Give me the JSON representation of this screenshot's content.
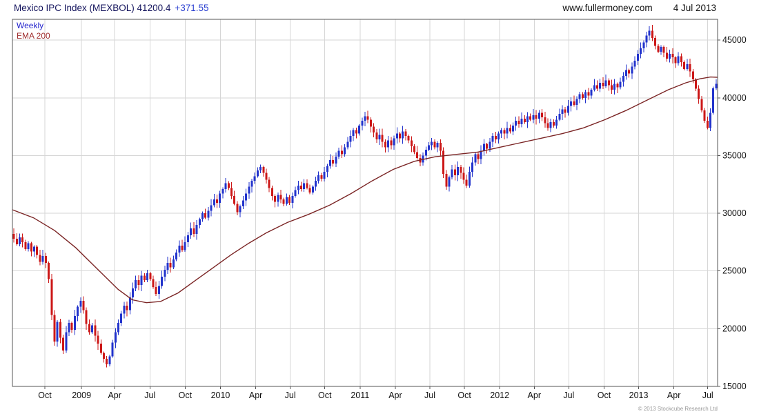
{
  "header": {
    "title": "Mexico IPC Index (MEXBOL) 41200.4",
    "change": "+371.55",
    "website": "www.fullermoney.com",
    "date": "4 Jul 2013"
  },
  "legend": {
    "weekly": "Weekly",
    "ema": "EMA 200"
  },
  "footer": {
    "copyright": "© 2013 Stockcube Research Ltd"
  },
  "colors": {
    "up": "#2233cc",
    "down": "#cc1717",
    "ema": "#7b2525",
    "grid": "#d6d6d6",
    "border": "#555555",
    "axis_text": "#111111",
    "title_text": "#13135c",
    "change_text": "#2a3fd0"
  },
  "chart_data": {
    "type": "candlestick",
    "title": "Mexico IPC Index (MEXBOL)",
    "timeframe": "Weekly",
    "overlay": "EMA 200",
    "last_price": 41200.4,
    "change": 371.55,
    "y_axis": {
      "min": 15000,
      "max": 46800,
      "ticks": [
        15000,
        20000,
        25000,
        30000,
        35000,
        40000,
        45000
      ]
    },
    "x_labels": [
      {
        "label": "Oct",
        "pos": 0.046
      },
      {
        "label": "2009",
        "pos": 0.098
      },
      {
        "label": "Apr",
        "pos": 0.145
      },
      {
        "label": "Jul",
        "pos": 0.195
      },
      {
        "label": "Oct",
        "pos": 0.245
      },
      {
        "label": "2010",
        "pos": 0.295
      },
      {
        "label": "Apr",
        "pos": 0.345
      },
      {
        "label": "Jul",
        "pos": 0.394
      },
      {
        "label": "Oct",
        "pos": 0.443
      },
      {
        "label": "2011",
        "pos": 0.493
      },
      {
        "label": "Apr",
        "pos": 0.543
      },
      {
        "label": "Jul",
        "pos": 0.592
      },
      {
        "label": "Oct",
        "pos": 0.641
      },
      {
        "label": "2012",
        "pos": 0.691
      },
      {
        "label": "Apr",
        "pos": 0.74
      },
      {
        "label": "Jul",
        "pos": 0.789
      },
      {
        "label": "Oct",
        "pos": 0.839
      },
      {
        "label": "2013",
        "pos": 0.888
      },
      {
        "label": "Apr",
        "pos": 0.938
      },
      {
        "label": "Jul",
        "pos": 0.986
      }
    ],
    "weekly_closes": [
      27800,
      27300,
      27900,
      27500,
      26900,
      27400,
      26700,
      27100,
      26400,
      25800,
      26300,
      25700,
      24300,
      21200,
      18900,
      20600,
      19200,
      18100,
      19700,
      20500,
      19900,
      21100,
      21900,
      22400,
      21600,
      20400,
      19700,
      20300,
      19400,
      18700,
      17900,
      17400,
      16900,
      17600,
      18800,
      19700,
      20500,
      21300,
      22000,
      21600,
      22700,
      23500,
      24200,
      23800,
      24600,
      24200,
      24800,
      24300,
      23600,
      23000,
      23700,
      24500,
      25100,
      25700,
      25300,
      26000,
      26600,
      27200,
      26800,
      27500,
      28100,
      28700,
      28200,
      29000,
      29500,
      30000,
      29600,
      30200,
      30700,
      31200,
      30900,
      31700,
      32100,
      32600,
      32200,
      31500,
      30800,
      30100,
      30600,
      31100,
      31700,
      32300,
      32800,
      33200,
      33700,
      34000,
      33500,
      32900,
      32200,
      31500,
      31000,
      31600,
      31200,
      30800,
      31400,
      30900,
      31500,
      32000,
      32400,
      32100,
      32600,
      32200,
      31800,
      32300,
      32800,
      33300,
      33000,
      33600,
      34100,
      34600,
      34300,
      34900,
      35400,
      35100,
      35700,
      36200,
      36700,
      37200,
      36900,
      37600,
      38000,
      38400,
      38100,
      37500,
      37000,
      36400,
      36800,
      36200,
      35700,
      36300,
      35900,
      36500,
      36900,
      36500,
      37100,
      36700,
      36300,
      35800,
      35300,
      34800,
      34400,
      35000,
      35500,
      35900,
      36200,
      35700,
      36100,
      35400,
      33400,
      32300,
      33100,
      33800,
      33300,
      34000,
      33500,
      32900,
      32400,
      33600,
      34400,
      35100,
      34700,
      35400,
      36000,
      35600,
      36200,
      36700,
      36400,
      36900,
      37200,
      36900,
      37400,
      37100,
      37600,
      38000,
      37700,
      38200,
      37900,
      38400,
      38100,
      38500,
      38200,
      38700,
      38300,
      37800,
      37400,
      37900,
      37600,
      38100,
      38600,
      39000,
      38700,
      39300,
      39700,
      39400,
      39900,
      40300,
      40000,
      40500,
      40200,
      40700,
      41100,
      40800,
      41300,
      41000,
      41500,
      41100,
      40700,
      41200,
      40900,
      41400,
      41900,
      42400,
      42100,
      42700,
      43200,
      43800,
      44300,
      44800,
      45400,
      45800,
      45200,
      44500,
      44000,
      44400,
      43900,
      43400,
      43800,
      43500,
      43000,
      43600,
      43100,
      42500,
      42900,
      42300,
      41600,
      40800,
      39900,
      38900,
      38000,
      37400,
      38700,
      40828.85,
      41200.4
    ],
    "ema200_points": [
      [
        0.0,
        30300
      ],
      [
        0.03,
        29600
      ],
      [
        0.06,
        28500
      ],
      [
        0.09,
        27000
      ],
      [
        0.12,
        25200
      ],
      [
        0.15,
        23400
      ],
      [
        0.17,
        22500
      ],
      [
        0.19,
        22250
      ],
      [
        0.21,
        22350
      ],
      [
        0.235,
        23100
      ],
      [
        0.26,
        24200
      ],
      [
        0.285,
        25300
      ],
      [
        0.31,
        26400
      ],
      [
        0.335,
        27400
      ],
      [
        0.36,
        28300
      ],
      [
        0.39,
        29200
      ],
      [
        0.42,
        29900
      ],
      [
        0.45,
        30700
      ],
      [
        0.48,
        31700
      ],
      [
        0.51,
        32800
      ],
      [
        0.54,
        33800
      ],
      [
        0.57,
        34500
      ],
      [
        0.6,
        34900
      ],
      [
        0.63,
        35100
      ],
      [
        0.66,
        35300
      ],
      [
        0.69,
        35700
      ],
      [
        0.72,
        36100
      ],
      [
        0.75,
        36500
      ],
      [
        0.78,
        36900
      ],
      [
        0.81,
        37400
      ],
      [
        0.84,
        38100
      ],
      [
        0.87,
        38900
      ],
      [
        0.9,
        39800
      ],
      [
        0.93,
        40700
      ],
      [
        0.955,
        41300
      ],
      [
        0.975,
        41650
      ],
      [
        0.99,
        41800
      ],
      [
        1.0,
        41780
      ]
    ]
  }
}
